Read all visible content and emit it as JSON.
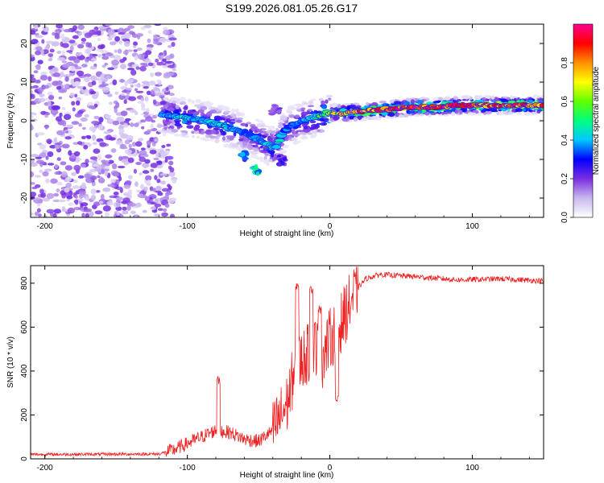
{
  "title": "S199.2026.081.05.26.G17",
  "chart_data": [
    {
      "type": "heatmap",
      "xlabel": "Height of straight line (km)",
      "ylabel": "Frequency (Hz)",
      "xlim": [
        -210,
        150
      ],
      "ylim": [
        -25,
        25
      ],
      "xticks": [
        -200,
        -100,
        0,
        100
      ],
      "yticks": [
        -20,
        -10,
        0,
        10,
        20
      ],
      "colorbar": {
        "label": "Normalized spectral amplitude",
        "range": [
          0,
          1
        ],
        "ticks": [
          0.0,
          0.2,
          0.4,
          0.6,
          0.8
        ],
        "colors": [
          "#ffffff",
          "#c9b8ee",
          "#7a2ee0",
          "#0000ff",
          "#00c8ff",
          "#00ff80",
          "#60ff00",
          "#ffff00",
          "#ff9000",
          "#ff0000",
          "#ff0090"
        ]
      },
      "ridge": [
        {
          "x": -118,
          "y": 1.5,
          "a": 0.35
        },
        {
          "x": -108,
          "y": 1.0,
          "a": 0.4
        },
        {
          "x": -98,
          "y": 0.5,
          "a": 0.45
        },
        {
          "x": -88,
          "y": 0.0,
          "a": 0.4
        },
        {
          "x": -78,
          "y": -1.0,
          "a": 0.4
        },
        {
          "x": -68,
          "y": -2.0,
          "a": 0.4
        },
        {
          "x": -60,
          "y": -3.0,
          "a": 0.35
        },
        {
          "x": -52,
          "y": -4.5,
          "a": 0.35
        },
        {
          "x": -45,
          "y": -6.0,
          "a": 0.4
        },
        {
          "x": -38,
          "y": -7.0,
          "a": 0.45
        },
        {
          "x": -32,
          "y": -2.5,
          "a": 0.35
        },
        {
          "x": -25,
          "y": -1.0,
          "a": 0.35
        },
        {
          "x": -18,
          "y": 0.0,
          "a": 0.4
        },
        {
          "x": -10,
          "y": 1.0,
          "a": 0.5
        },
        {
          "x": -2,
          "y": 2.0,
          "a": 0.6
        },
        {
          "x": 10,
          "y": 2.0,
          "a": 0.7
        },
        {
          "x": 25,
          "y": 2.5,
          "a": 0.85
        },
        {
          "x": 40,
          "y": 3.0,
          "a": 0.8
        },
        {
          "x": 60,
          "y": 3.5,
          "a": 0.9
        },
        {
          "x": 75,
          "y": 3.5,
          "a": 0.85
        },
        {
          "x": 90,
          "y": 4.0,
          "a": 0.9
        },
        {
          "x": 105,
          "y": 4.0,
          "a": 0.85
        },
        {
          "x": 120,
          "y": 4.0,
          "a": 0.8
        },
        {
          "x": 140,
          "y": 4.0,
          "a": 0.85
        }
      ],
      "branches": [
        {
          "x": -60,
          "y": -9.0,
          "a": 0.35
        },
        {
          "x": -52,
          "y": -12.5,
          "a": 0.45
        },
        {
          "x": -38,
          "y": 3.0,
          "a": 0.2
        },
        {
          "x": -34,
          "y": -10.0,
          "a": 0.25
        }
      ],
      "noise_region_xmax": -115
    },
    {
      "type": "line",
      "xlabel": "Height of straight line (km)",
      "ylabel": "SNR (10 * v/v)",
      "xlim": [
        -210,
        150
      ],
      "ylim": [
        0,
        880
      ],
      "xticks": [
        -200,
        -100,
        0,
        100
      ],
      "yticks": [
        0,
        200,
        400,
        600,
        800
      ],
      "color": "#ee2222",
      "series_profile": [
        {
          "x": -210,
          "y": 20
        },
        {
          "x": -120,
          "y": 22
        },
        {
          "x": -110,
          "y": 40
        },
        {
          "x": -100,
          "y": 70
        },
        {
          "x": -90,
          "y": 100
        },
        {
          "x": -80,
          "y": 130
        },
        {
          "x": -70,
          "y": 120
        },
        {
          "x": -60,
          "y": 90
        },
        {
          "x": -50,
          "y": 80
        },
        {
          "x": -40,
          "y": 130
        },
        {
          "x": -30,
          "y": 250
        },
        {
          "x": -25,
          "y": 400
        },
        {
          "x": -20,
          "y": 450
        },
        {
          "x": -15,
          "y": 480
        },
        {
          "x": -10,
          "y": 520
        },
        {
          "x": -5,
          "y": 460
        },
        {
          "x": 0,
          "y": 550
        },
        {
          "x": 5,
          "y": 580
        },
        {
          "x": 10,
          "y": 650
        },
        {
          "x": 15,
          "y": 720
        },
        {
          "x": 20,
          "y": 780
        },
        {
          "x": 25,
          "y": 820
        },
        {
          "x": 35,
          "y": 840
        },
        {
          "x": 60,
          "y": 830
        },
        {
          "x": 90,
          "y": 815
        },
        {
          "x": 120,
          "y": 820
        },
        {
          "x": 150,
          "y": 810
        }
      ],
      "spikes": [
        {
          "x": -78,
          "y": 380
        },
        {
          "x": -23,
          "y": 800
        },
        {
          "x": -13,
          "y": 790
        },
        {
          "x": -7,
          "y": 700
        },
        {
          "x": 5,
          "y": 300
        }
      ]
    }
  ]
}
